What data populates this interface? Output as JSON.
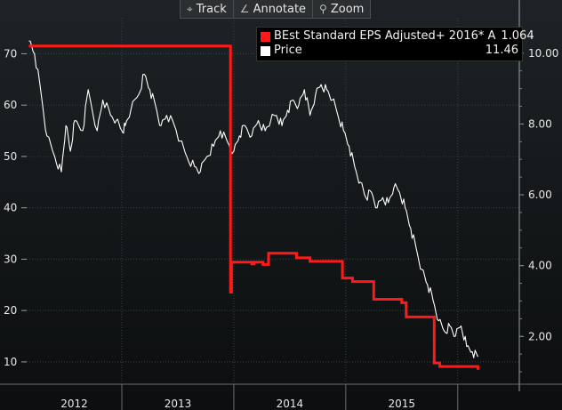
{
  "toolbar": {
    "track_label": "Track",
    "annotate_label": "Annotate",
    "zoom_label": "Zoom",
    "track_icon": "crosshair-icon",
    "annotate_icon": "pencil-icon",
    "zoom_icon": "magnifier-icon"
  },
  "legend": {
    "items": [
      {
        "label": "BEst Standard EPS Adjusted+ 2016* A",
        "value": "1.064",
        "color": "#ff1a1a"
      },
      {
        "label": "Price",
        "value": "11.46",
        "color": "#ffffff"
      }
    ]
  },
  "chart_data": {
    "type": "line",
    "left_axis": {
      "ticks": [
        10,
        20,
        30,
        40,
        50,
        60,
        70
      ],
      "range": [
        6,
        77
      ]
    },
    "right_axis": {
      "ticks": [
        "2.00",
        "4.00",
        "6.00",
        "8.00",
        "10.00"
      ],
      "range": [
        0.7,
        11.0
      ]
    },
    "x_axis": {
      "labels": [
        "2012",
        "2013",
        "2014",
        "2015"
      ],
      "start": 2011.65,
      "end": 2016.05,
      "dividers": [
        2012.5,
        2013.5,
        2014.5,
        2015.5
      ]
    },
    "grid": true,
    "series": [
      {
        "name": "BEst Standard EPS Adjusted+ 2016* A",
        "color": "#ff1a1a",
        "axis": "right",
        "x": [
          2011.67,
          2013.47,
          2013.47,
          2013.48,
          2013.48,
          2013.66,
          2013.66,
          2013.68,
          2013.68,
          2013.76,
          2013.76,
          2013.81,
          2013.81,
          2014.06,
          2014.06,
          2014.18,
          2014.18,
          2014.47,
          2014.47,
          2014.56,
          2014.56,
          2014.75,
          2014.75,
          2015.0,
          2015.0,
          2015.04,
          2015.04,
          2015.29,
          2015.29,
          2015.34,
          2015.34,
          2015.68,
          2015.68
        ],
        "y": [
          10.2,
          10.2,
          3.25,
          3.25,
          4.1,
          4.1,
          4.05,
          4.05,
          4.1,
          4.1,
          4.03,
          4.03,
          4.35,
          4.35,
          4.22,
          4.22,
          4.12,
          4.12,
          3.65,
          3.65,
          3.55,
          3.55,
          3.05,
          3.05,
          2.95,
          2.95,
          2.55,
          2.55,
          1.25,
          1.25,
          1.15,
          1.15,
          1.06
        ]
      },
      {
        "name": "Price",
        "color": "#ffffff",
        "axis": "left",
        "x": [
          2011.67,
          2011.72,
          2011.78,
          2011.83,
          2011.9,
          2011.96,
          2012.0,
          2012.04,
          2012.08,
          2012.15,
          2012.2,
          2012.28,
          2012.33,
          2012.4,
          2012.45,
          2012.5,
          2012.53,
          2012.58,
          2012.65,
          2012.7,
          2012.75,
          2012.8,
          2012.85,
          2012.9,
          2012.97,
          2013.02,
          2013.08,
          2013.15,
          2013.2,
          2013.26,
          2013.32,
          2013.38,
          2013.44,
          2013.5,
          2013.55,
          2013.6,
          2013.66,
          2013.72,
          2013.78,
          2013.83,
          2013.88,
          2013.93,
          2013.98,
          2014.03,
          2014.08,
          2014.13,
          2014.18,
          2014.23,
          2014.28,
          2014.33,
          2014.38,
          2014.43,
          2014.48,
          2014.53,
          2014.58,
          2014.63,
          2014.68,
          2014.73,
          2014.78,
          2014.83,
          2014.88,
          2014.93,
          2014.98,
          2015.03,
          2015.08,
          2015.13,
          2015.18,
          2015.23,
          2015.28,
          2015.33,
          2015.38,
          2015.43,
          2015.48,
          2015.53,
          2015.58,
          2015.63,
          2015.68
        ],
        "y": [
          72.5,
          70,
          62,
          54,
          50,
          47,
          56,
          51,
          57,
          55,
          63,
          55,
          61,
          58,
          57,
          55,
          56,
          59,
          62,
          66,
          63,
          60,
          56,
          58,
          56,
          53,
          50,
          48,
          47,
          50,
          52,
          55,
          53,
          51,
          54,
          56,
          54,
          57,
          55,
          57,
          58,
          56,
          59,
          61,
          60,
          63,
          58,
          62,
          64,
          63,
          61,
          58,
          55,
          52,
          48,
          45,
          42,
          43,
          40,
          42,
          41,
          44,
          43,
          40,
          36,
          32,
          28,
          25,
          22,
          18,
          16,
          17,
          15,
          17,
          13,
          12,
          11
        ]
      }
    ]
  }
}
